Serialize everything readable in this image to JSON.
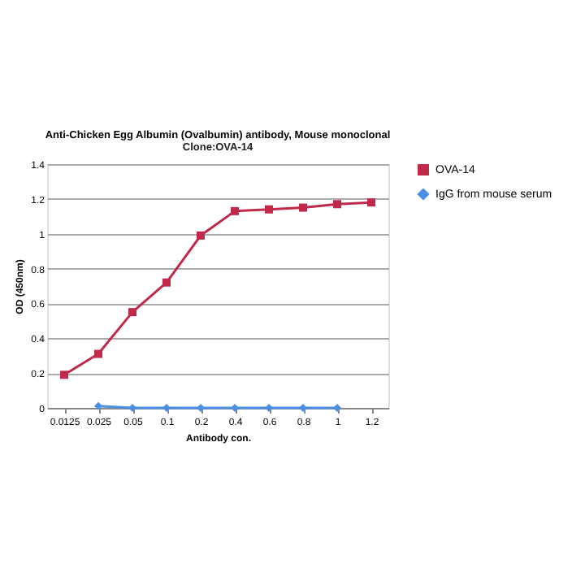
{
  "chart_data": {
    "type": "line",
    "title": "Anti-Chicken Egg Albumin (Ovalbumin) antibody, Mouse monoclonal",
    "subtitle": "Clone:OVA-14",
    "xlabel": "Antibody con.",
    "ylabel": "OD (450nm)",
    "categories": [
      "0.0125",
      "0.025",
      "0.05",
      "0.1",
      "0.2",
      "0.4",
      "0.6",
      "0.8",
      "1",
      "1.2"
    ],
    "series": [
      {
        "name": "OVA-14",
        "color": "#c0294a",
        "marker": "square",
        "values": [
          0.19,
          0.31,
          0.55,
          0.72,
          0.99,
          1.13,
          1.14,
          1.15,
          1.17,
          1.18
        ]
      },
      {
        "name": "IgG from mouse serum",
        "color": "#4a8fe0",
        "marker": "diamond",
        "values": [
          null,
          0.01,
          0,
          0,
          0,
          0,
          0,
          0,
          0,
          null
        ]
      }
    ],
    "ylim": [
      0,
      1.4
    ],
    "yticks": [
      0,
      0.2,
      0.4,
      0.6,
      0.8,
      1,
      1.2,
      1.4
    ],
    "grid": "y",
    "legend": "right"
  }
}
